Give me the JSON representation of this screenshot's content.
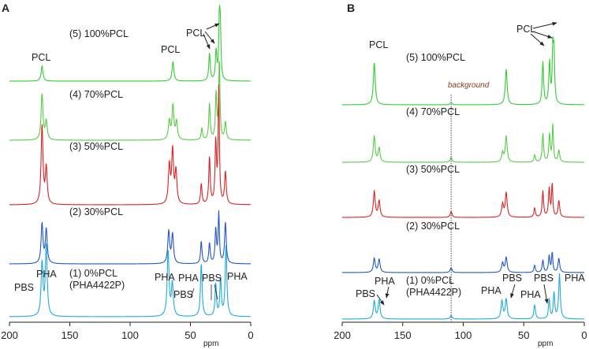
{
  "chart_data": [
    {
      "type": "line",
      "panel": "A",
      "xlabel": "ppm",
      "xlim": [
        200,
        0
      ],
      "x_ticks": [
        "200",
        "150",
        "100",
        "50",
        "0"
      ],
      "x_tick_values": [
        200,
        150,
        100,
        50,
        0
      ],
      "series": [
        {
          "name": "(5) 100%PCL",
          "color": "#33cc33",
          "peaks": [
            {
              "x": 173.0,
              "h": 0.26,
              "w": 0.9
            },
            {
              "x": 64.5,
              "h": 0.33,
              "w": 0.9
            },
            {
              "x": 34.2,
              "h": 0.47,
              "w": 0.7
            },
            {
              "x": 28.7,
              "h": 0.5,
              "w": 0.7
            },
            {
              "x": 26.0,
              "h": 0.95,
              "w": 0.6
            },
            {
              "x": 25.2,
              "h": 0.8,
              "w": 0.6
            }
          ],
          "peak_labels": [
            {
              "text": "PCL"
            },
            {
              "text": "PCL"
            },
            {
              "text": "PCL"
            }
          ]
        },
        {
          "name": "(4) 70%PCL",
          "color": "#55cc44",
          "peaks": [
            {
              "x": 173.0,
              "h": 0.78,
              "w": 0.9
            },
            {
              "x": 169.5,
              "h": 0.32,
              "w": 0.9
            },
            {
              "x": 67.5,
              "h": 0.32,
              "w": 0.9
            },
            {
              "x": 64.5,
              "h": 0.58,
              "w": 0.9
            },
            {
              "x": 61.5,
              "h": 0.3,
              "w": 0.9
            },
            {
              "x": 40.5,
              "h": 0.2,
              "w": 0.7
            },
            {
              "x": 34.2,
              "h": 0.62,
              "w": 0.7
            },
            {
              "x": 28.7,
              "h": 0.78,
              "w": 0.7
            },
            {
              "x": 26.0,
              "h": 1.35,
              "w": 0.6
            },
            {
              "x": 21.0,
              "h": 0.3,
              "w": 0.8
            }
          ]
        },
        {
          "name": "(3) 50%PCL",
          "color": "#dd2222",
          "peaks": [
            {
              "x": 173.0,
              "h": 1.35,
              "w": 0.9
            },
            {
              "x": 169.5,
              "h": 0.62,
              "w": 0.9
            },
            {
              "x": 67.5,
              "h": 0.65,
              "w": 0.9
            },
            {
              "x": 64.8,
              "h": 0.9,
              "w": 0.9
            },
            {
              "x": 62.0,
              "h": 0.55,
              "w": 0.9
            },
            {
              "x": 41.0,
              "h": 0.35,
              "w": 0.7
            },
            {
              "x": 34.2,
              "h": 0.8,
              "w": 0.7
            },
            {
              "x": 29.0,
              "h": 1.05,
              "w": 0.7
            },
            {
              "x": 26.5,
              "h": 1.95,
              "w": 0.6
            },
            {
              "x": 21.0,
              "h": 0.55,
              "w": 0.8
            }
          ]
        },
        {
          "name": "(2) 30%PCL",
          "color": "#2255cc",
          "peaks": [
            {
              "x": 173.0,
              "h": 0.68,
              "w": 0.9
            },
            {
              "x": 169.5,
              "h": 0.58,
              "w": 0.9
            },
            {
              "x": 68.0,
              "h": 0.55,
              "w": 0.9
            },
            {
              "x": 64.8,
              "h": 0.5,
              "w": 0.9
            },
            {
              "x": 41.0,
              "h": 0.38,
              "w": 0.7
            },
            {
              "x": 34.2,
              "h": 0.35,
              "w": 0.7
            },
            {
              "x": 29.0,
              "h": 0.58,
              "w": 0.7
            },
            {
              "x": 26.5,
              "h": 0.85,
              "w": 0.6
            },
            {
              "x": 21.0,
              "h": 0.7,
              "w": 0.8
            }
          ]
        },
        {
          "name": "(1) 0%PCL",
          "name_line2": "(PHA4422P)",
          "color": "#22aadd",
          "peaks": [
            {
              "x": 173.0,
              "h": 0.9,
              "w": 0.9
            },
            {
              "x": 169.5,
              "h": 1.2,
              "w": 0.9
            },
            {
              "x": 68.5,
              "h": 1.12,
              "w": 0.9
            },
            {
              "x": 65.0,
              "h": 0.55,
              "w": 0.9
            },
            {
              "x": 41.0,
              "h": 0.9,
              "w": 0.8
            },
            {
              "x": 29.0,
              "h": 0.55,
              "w": 0.7
            },
            {
              "x": 25.0,
              "h": 0.65,
              "w": 0.7
            },
            {
              "x": 20.5,
              "h": 1.2,
              "w": 0.8
            }
          ],
          "peak_labels": [
            {
              "text": "PBS"
            },
            {
              "text": "PHA"
            },
            {
              "text": "PHA"
            },
            {
              "text": "PBS"
            },
            {
              "text": "PHA"
            },
            {
              "text": "PBS"
            },
            {
              "text": "PHA"
            }
          ]
        }
      ]
    },
    {
      "type": "line",
      "panel": "B",
      "xlabel": "ppm",
      "xlim": [
        200,
        0
      ],
      "x_ticks": [
        "200",
        "150",
        "100",
        "50",
        "0"
      ],
      "x_tick_values": [
        200,
        150,
        100,
        50,
        0
      ],
      "annotation": {
        "text": "background",
        "x": 110
      },
      "series": [
        {
          "name": "(5) 100%PCL",
          "color": "#33cc33",
          "peaks": [
            {
              "x": 173.5,
              "h": 0.9,
              "w": 0.9
            },
            {
              "x": 110.0,
              "h": 0.05,
              "w": 0.9
            },
            {
              "x": 64.5,
              "h": 0.75,
              "w": 0.9
            },
            {
              "x": 34.2,
              "h": 0.9,
              "w": 0.7
            },
            {
              "x": 28.7,
              "h": 0.88,
              "w": 0.7
            },
            {
              "x": 26.0,
              "h": 1.15,
              "w": 0.6
            },
            {
              "x": 25.0,
              "h": 1.0,
              "w": 0.6
            }
          ],
          "peak_labels": [
            {
              "text": "PCL"
            },
            {
              "text": "PCL"
            }
          ]
        },
        {
          "name": "(4) 70%PCL",
          "color": "#55cc44",
          "peaks": [
            {
              "x": 173.5,
              "h": 0.55,
              "w": 0.9
            },
            {
              "x": 169.5,
              "h": 0.3,
              "w": 0.9
            },
            {
              "x": 110.0,
              "h": 0.1,
              "w": 0.9
            },
            {
              "x": 67.5,
              "h": 0.2,
              "w": 0.9
            },
            {
              "x": 64.5,
              "h": 0.55,
              "w": 0.9
            },
            {
              "x": 41.0,
              "h": 0.15,
              "w": 0.7
            },
            {
              "x": 34.2,
              "h": 0.6,
              "w": 0.7
            },
            {
              "x": 28.7,
              "h": 0.58,
              "w": 0.7
            },
            {
              "x": 26.0,
              "h": 0.78,
              "w": 0.6
            },
            {
              "x": 21.0,
              "h": 0.25,
              "w": 0.8
            }
          ]
        },
        {
          "name": "(3) 50%PCL",
          "color": "#dd2222",
          "peaks": [
            {
              "x": 173.5,
              "h": 0.55,
              "w": 0.9
            },
            {
              "x": 169.5,
              "h": 0.35,
              "w": 0.9
            },
            {
              "x": 110.0,
              "h": 0.12,
              "w": 0.9
            },
            {
              "x": 67.5,
              "h": 0.28,
              "w": 0.9
            },
            {
              "x": 64.5,
              "h": 0.52,
              "w": 0.9
            },
            {
              "x": 41.0,
              "h": 0.2,
              "w": 0.7
            },
            {
              "x": 34.2,
              "h": 0.55,
              "w": 0.7
            },
            {
              "x": 29.0,
              "h": 0.6,
              "w": 0.7
            },
            {
              "x": 26.5,
              "h": 0.7,
              "w": 0.6
            },
            {
              "x": 21.0,
              "h": 0.35,
              "w": 0.8
            }
          ]
        },
        {
          "name": "(2) 30%PCL",
          "color": "#2255cc",
          "peaks": [
            {
              "x": 173.5,
              "h": 0.3,
              "w": 0.9
            },
            {
              "x": 169.5,
              "h": 0.28,
              "w": 0.9
            },
            {
              "x": 110.0,
              "h": 0.1,
              "w": 0.9
            },
            {
              "x": 67.5,
              "h": 0.2,
              "w": 0.9
            },
            {
              "x": 64.5,
              "h": 0.32,
              "w": 0.9
            },
            {
              "x": 41.0,
              "h": 0.15,
              "w": 0.7
            },
            {
              "x": 34.2,
              "h": 0.26,
              "w": 0.7
            },
            {
              "x": 29.0,
              "h": 0.35,
              "w": 0.7
            },
            {
              "x": 26.5,
              "h": 0.42,
              "w": 0.6
            },
            {
              "x": 21.0,
              "h": 0.3,
              "w": 0.8
            }
          ]
        },
        {
          "name": "(1) 0%PCL",
          "name_line2": "(PHA4422P)",
          "color": "#22aadd",
          "peaks": [
            {
              "x": 173.5,
              "h": 0.38,
              "w": 0.9
            },
            {
              "x": 169.5,
              "h": 0.4,
              "w": 0.9
            },
            {
              "x": 110.0,
              "h": 0.08,
              "w": 0.9
            },
            {
              "x": 68.0,
              "h": 0.38,
              "w": 0.9
            },
            {
              "x": 64.5,
              "h": 0.42,
              "w": 0.9
            },
            {
              "x": 41.0,
              "h": 0.3,
              "w": 0.8
            },
            {
              "x": 29.0,
              "h": 0.42,
              "w": 0.7
            },
            {
              "x": 25.0,
              "h": 0.55,
              "w": 0.7
            },
            {
              "x": 20.5,
              "h": 0.95,
              "w": 0.8
            }
          ],
          "peak_labels": [
            {
              "text": "PBS"
            },
            {
              "text": "PHA"
            },
            {
              "text": "PBS"
            },
            {
              "text": "PHA"
            },
            {
              "text": "PHA"
            },
            {
              "text": "PBS"
            },
            {
              "text": "PHA"
            }
          ]
        }
      ]
    }
  ]
}
